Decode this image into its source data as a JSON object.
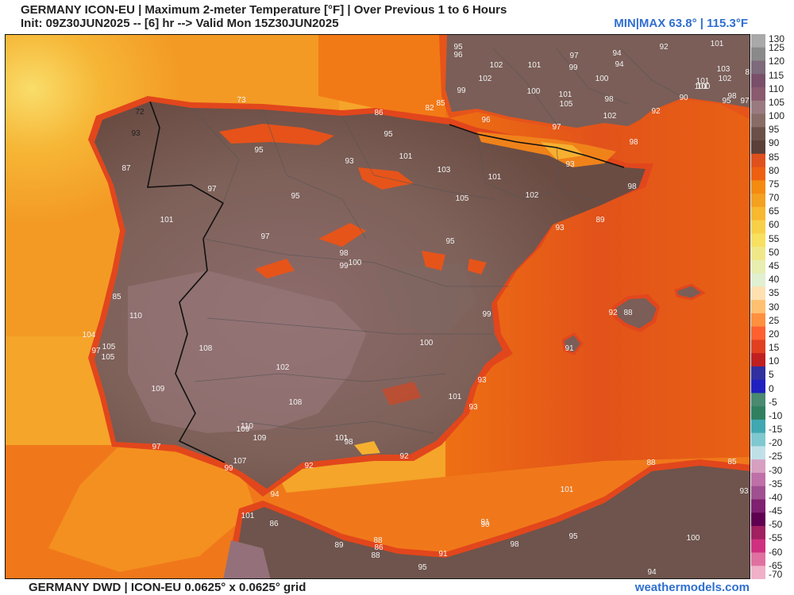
{
  "header": {
    "title": "GERMANY ICON-EU | Maximum 2-meter Temperature [°F] | Over Previous 1 to 6 Hours",
    "subtitle": "Init: 09Z30JUN2025 -- [6] hr --> Valid Mon 15Z30JUN2025",
    "minmax": "MIN|MAX 63.8° | 115.3°F"
  },
  "footer": {
    "left": "GERMANY DWD | ICON-EU 0.0625° x 0.0625° grid",
    "right": "weathermodels.com"
  },
  "colorbar": {
    "ticks": [
      "130",
      "125",
      "120",
      "115",
      "110",
      "105",
      "100",
      "95",
      "90",
      "85",
      "80",
      "75",
      "70",
      "65",
      "60",
      "55",
      "50",
      "45",
      "40",
      "35",
      "30",
      "25",
      "20",
      "15",
      "10",
      "5",
      "0",
      "-5",
      "-10",
      "-15",
      "-20",
      "-25",
      "-30",
      "-35",
      "-40",
      "-45",
      "-50",
      "-55",
      "-60",
      "-65",
      "-70"
    ],
    "colors": [
      "#a9a9a9",
      "#8a8a8a",
      "#7d6a7a",
      "#7a4f6a",
      "#8a5a6e",
      "#9a7a80",
      "#8a6c66",
      "#6a5047",
      "#5a4038",
      "#e0501c",
      "#ee6010",
      "#f58a10",
      "#f4a020",
      "#f8b830",
      "#f8d048",
      "#f8e060",
      "#f0e888",
      "#e8eeb0",
      "#e0f0d0",
      "#ffe0b0",
      "#ffc070",
      "#ff9040",
      "#ff6030",
      "#e04020",
      "#c02020",
      "#3030a0",
      "#2020c0",
      "#4a8a70",
      "#308060",
      "#40a8b0",
      "#80c8d0",
      "#c0e0e8",
      "#d8a0c0",
      "#c070a8",
      "#a05090",
      "#802070",
      "#600050",
      "#a02060",
      "#d03080",
      "#e070a0",
      "#f0b0c8"
    ]
  },
  "map": {
    "numbers": [
      {
        "v": "95"
      },
      {
        "v": "96"
      },
      {
        "v": "102"
      },
      {
        "v": "101"
      },
      {
        "v": "97"
      },
      {
        "v": "94"
      },
      {
        "v": "92"
      },
      {
        "v": "101"
      },
      {
        "v": "89"
      },
      {
        "v": "102"
      },
      {
        "v": "99"
      },
      {
        "v": "94"
      },
      {
        "v": "100"
      },
      {
        "v": "103"
      },
      {
        "v": "102"
      },
      {
        "v": "100"
      },
      {
        "v": "101"
      },
      {
        "v": "105"
      },
      {
        "v": "101"
      },
      {
        "v": "101"
      },
      {
        "v": "100"
      },
      {
        "v": "98"
      },
      {
        "v": "90"
      },
      {
        "v": "95"
      },
      {
        "v": "98"
      },
      {
        "v": "97"
      },
      {
        "v": "99"
      },
      {
        "v": "96"
      },
      {
        "v": "102"
      },
      {
        "v": "92"
      },
      {
        "v": "72"
      },
      {
        "v": "73"
      },
      {
        "v": "82"
      },
      {
        "v": "85"
      },
      {
        "v": "86"
      },
      {
        "v": "97"
      },
      {
        "v": "95"
      },
      {
        "v": "93"
      },
      {
        "v": "95"
      },
      {
        "v": "101"
      },
      {
        "v": "103"
      },
      {
        "v": "101"
      },
      {
        "v": "98"
      },
      {
        "v": "93"
      },
      {
        "v": "87"
      },
      {
        "v": "93"
      },
      {
        "v": "97"
      },
      {
        "v": "95"
      },
      {
        "v": "105"
      },
      {
        "v": "102"
      },
      {
        "v": "98"
      },
      {
        "v": "101"
      },
      {
        "v": "89"
      },
      {
        "v": "93"
      },
      {
        "v": "97"
      },
      {
        "v": "95"
      },
      {
        "v": "98"
      },
      {
        "v": "100"
      },
      {
        "v": "99"
      },
      {
        "v": "85"
      },
      {
        "v": "110"
      },
      {
        "v": "104"
      },
      {
        "v": "105"
      },
      {
        "v": "97"
      },
      {
        "v": "105"
      },
      {
        "v": "108"
      },
      {
        "v": "100"
      },
      {
        "v": "99"
      },
      {
        "v": "92"
      },
      {
        "v": "88"
      },
      {
        "v": "91"
      },
      {
        "v": "109"
      },
      {
        "v": "102"
      },
      {
        "v": "108"
      },
      {
        "v": "101"
      },
      {
        "v": "93"
      },
      {
        "v": "93"
      },
      {
        "v": "110"
      },
      {
        "v": "109"
      },
      {
        "v": "109"
      },
      {
        "v": "97"
      },
      {
        "v": "101"
      },
      {
        "v": "98"
      },
      {
        "v": "92"
      },
      {
        "v": "107"
      },
      {
        "v": "99"
      },
      {
        "v": "92"
      },
      {
        "v": "88"
      },
      {
        "v": "85"
      },
      {
        "v": "93"
      },
      {
        "v": "101"
      },
      {
        "v": "94"
      },
      {
        "v": "101"
      },
      {
        "v": "86"
      },
      {
        "v": "88"
      },
      {
        "v": "90"
      },
      {
        "v": "89"
      },
      {
        "v": "86"
      },
      {
        "v": "88"
      },
      {
        "v": "91"
      },
      {
        "v": "91"
      },
      {
        "v": "98"
      },
      {
        "v": "95"
      },
      {
        "v": "100"
      },
      {
        "v": "95"
      },
      {
        "v": "94"
      }
    ]
  }
}
